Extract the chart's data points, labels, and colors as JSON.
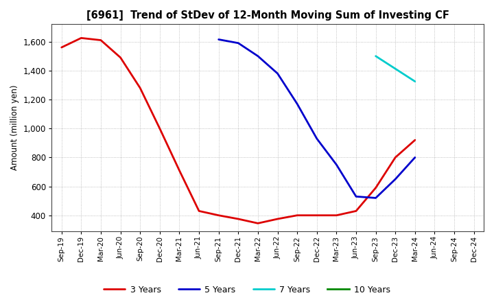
{
  "title": "[6961]  Trend of StDev of 12-Month Moving Sum of Investing CF",
  "ylabel": "Amount (million yen)",
  "background_color": "#ffffff",
  "plot_bg_color": "#ffffff",
  "grid_color": "#999999",
  "ylim": [
    290,
    1720
  ],
  "yticks": [
    400,
    600,
    800,
    1000,
    1200,
    1400,
    1600
  ],
  "series": {
    "3 Years": {
      "color": "#dd0000",
      "x": [
        "Sep-19",
        "Dec-19",
        "Mar-20",
        "Jun-20",
        "Sep-20",
        "Dec-20",
        "Mar-21",
        "Jun-21",
        "Sep-21",
        "Dec-21",
        "Mar-22",
        "Jun-22",
        "Sep-22",
        "Dec-22",
        "Mar-23",
        "Jun-23",
        "Sep-23",
        "Dec-23",
        "Mar-24"
      ],
      "y": [
        1560,
        1625,
        1610,
        1490,
        1280,
        1000,
        710,
        430,
        400,
        375,
        345,
        375,
        400,
        400,
        400,
        430,
        590,
        800,
        920
      ]
    },
    "5 Years": {
      "color": "#0000cc",
      "x": [
        "Sep-21",
        "Dec-21",
        "Mar-22",
        "Jun-22",
        "Sep-22",
        "Dec-22",
        "Mar-23",
        "Jun-23",
        "Sep-23",
        "Dec-23",
        "Mar-24"
      ],
      "y": [
        1615,
        1590,
        1500,
        1380,
        1170,
        930,
        750,
        530,
        520,
        650,
        800
      ]
    },
    "7 Years": {
      "color": "#00cccc",
      "x": [
        "Sep-23",
        "Mar-24"
      ],
      "y": [
        1500,
        1325
      ]
    },
    "10 Years": {
      "color": "#008800",
      "x": [],
      "y": []
    }
  },
  "x_labels": [
    "Sep-19",
    "Dec-19",
    "Mar-20",
    "Jun-20",
    "Sep-20",
    "Dec-20",
    "Mar-21",
    "Jun-21",
    "Sep-21",
    "Dec-21",
    "Mar-22",
    "Jun-22",
    "Sep-22",
    "Dec-22",
    "Mar-23",
    "Jun-23",
    "Sep-23",
    "Dec-23",
    "Mar-24",
    "Jun-24",
    "Sep-24",
    "Dec-24"
  ],
  "legend_order": [
    "3 Years",
    "5 Years",
    "7 Years",
    "10 Years"
  ]
}
